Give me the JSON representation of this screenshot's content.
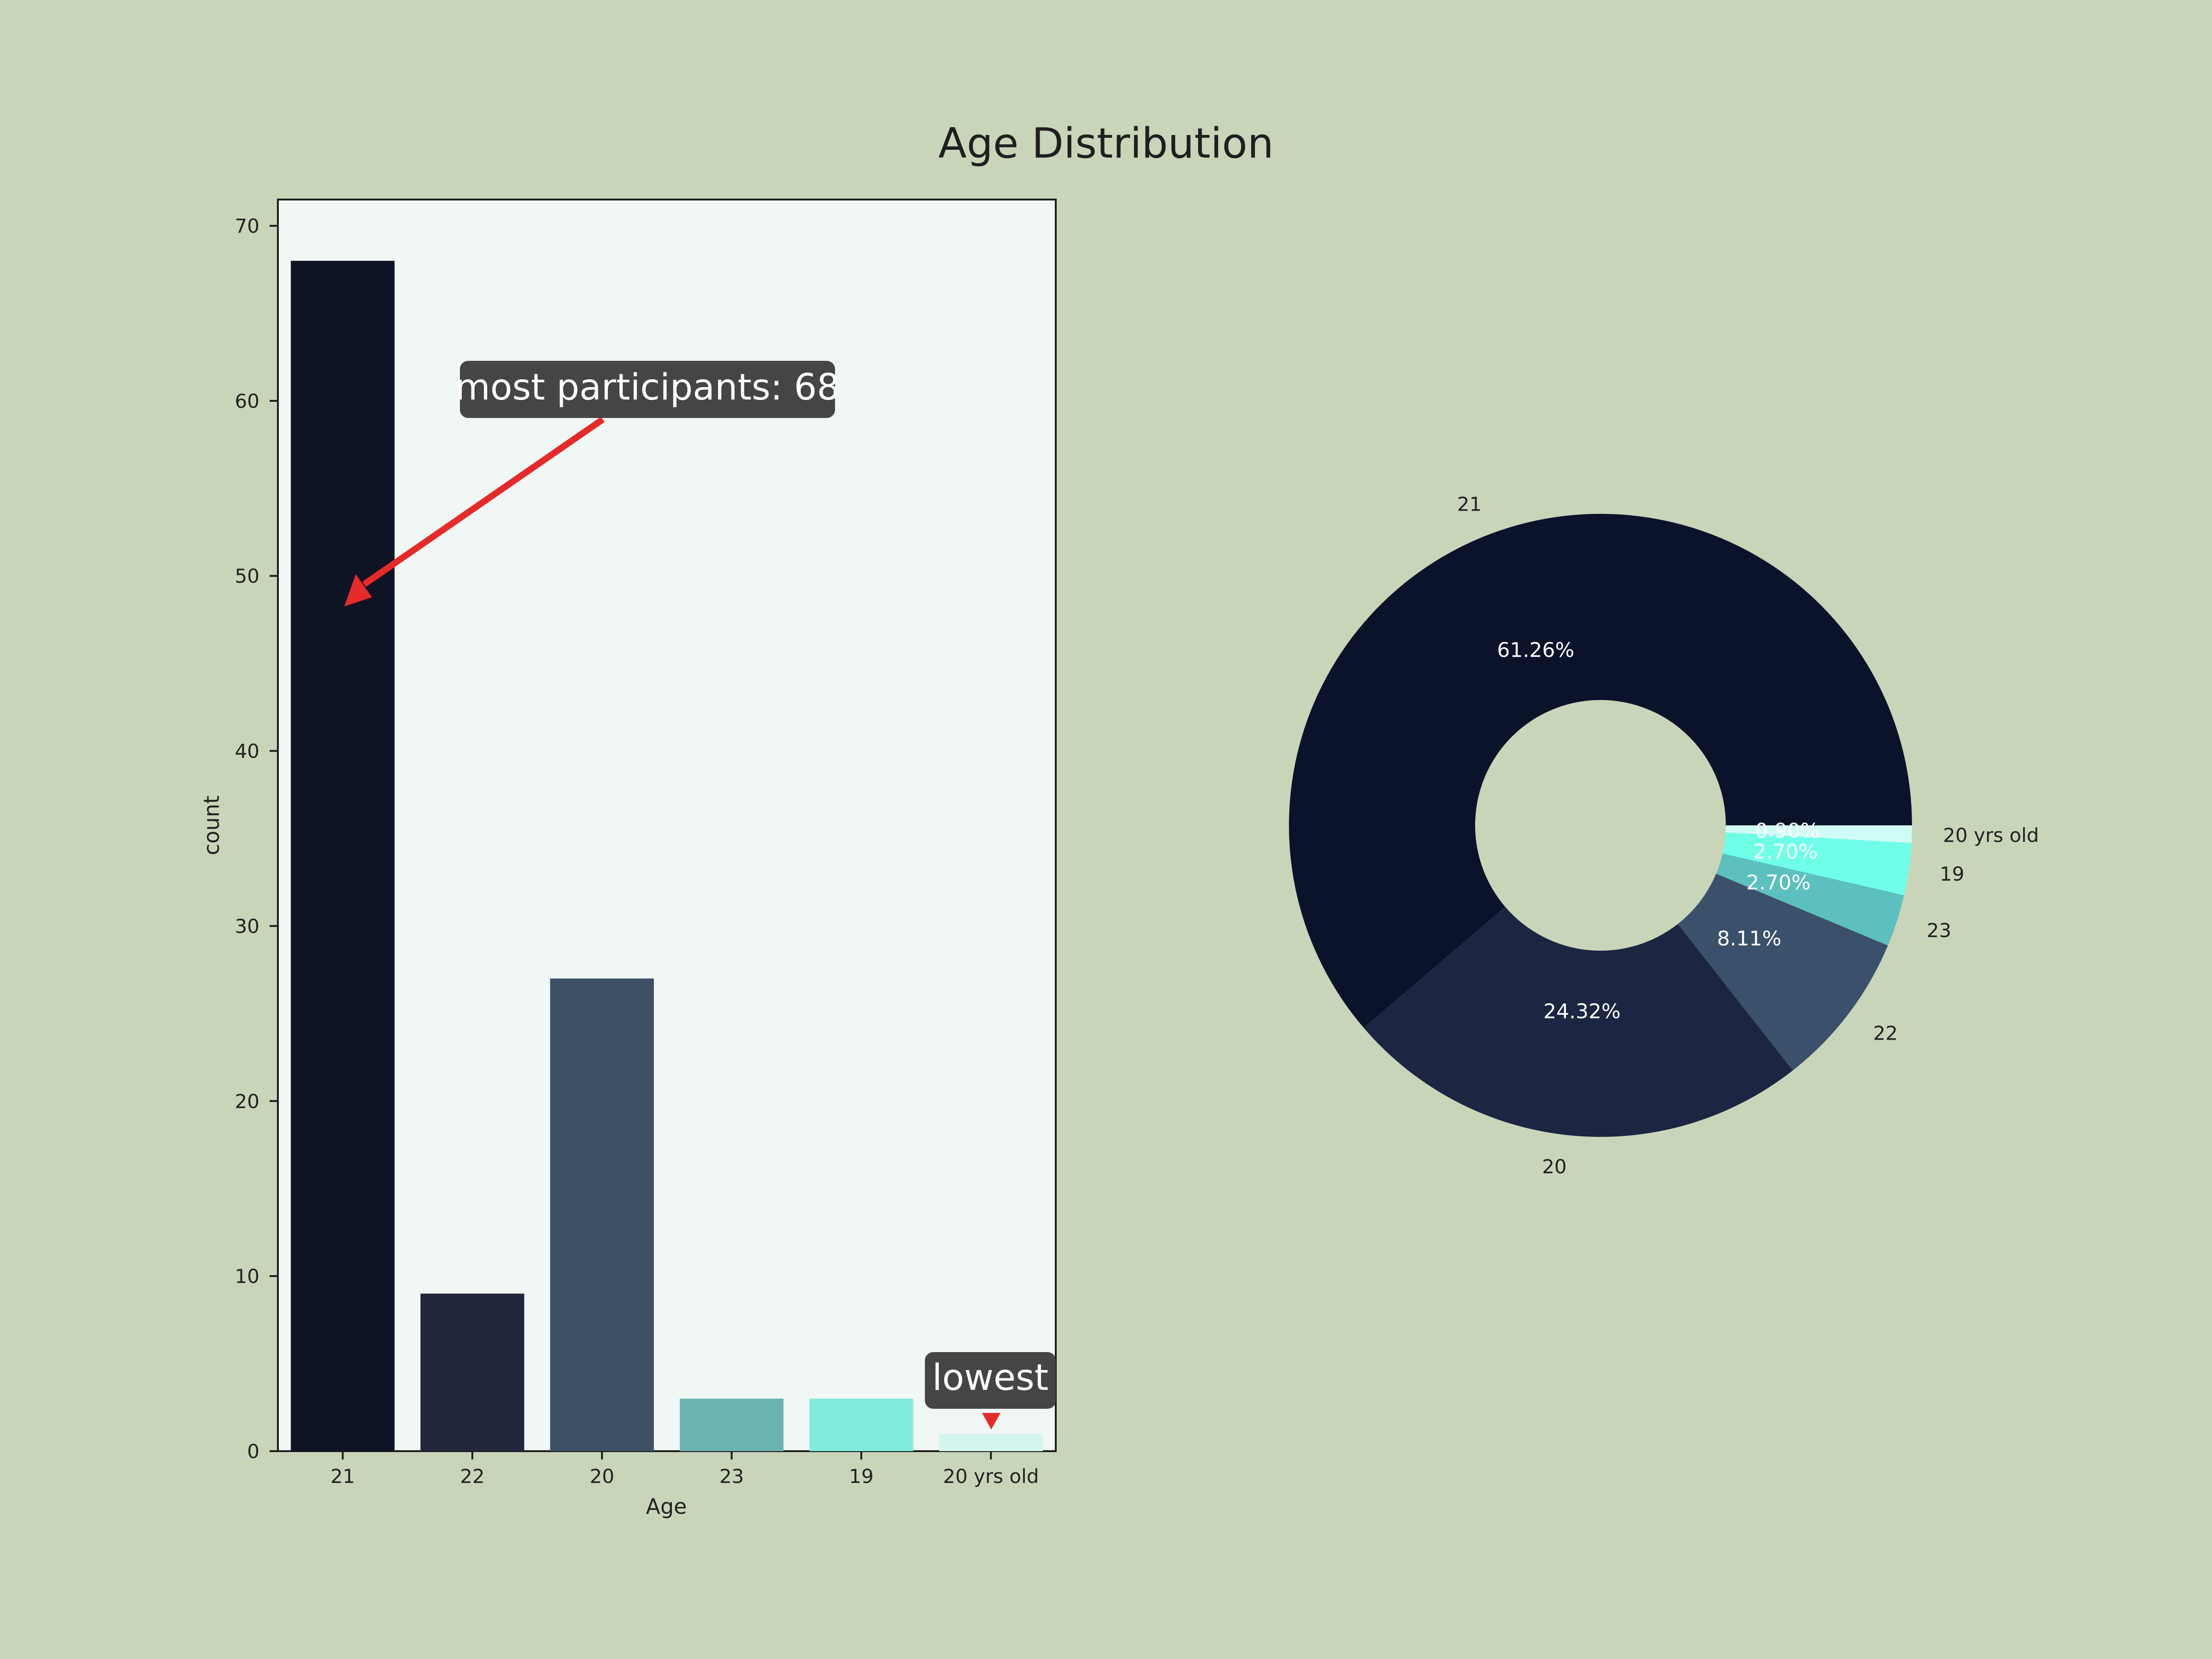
{
  "background": "#c9d5b9",
  "plot_background": "#f1f7f4",
  "title": "Age Distribution",
  "chart_data": [
    {
      "type": "bar",
      "categories": [
        "21",
        "22",
        "20",
        "23",
        "19",
        "20 yrs old"
      ],
      "values": [
        68,
        9,
        27,
        3,
        3,
        1
      ],
      "colors": [
        "#0f1424",
        "#21263b",
        "#3e5066",
        "#6ab3b2",
        "#80ebde",
        "#d5f6f0"
      ],
      "xlabel": "Age",
      "ylabel": "count",
      "ylim": [
        0,
        71.5
      ],
      "yticks": [
        0,
        10,
        20,
        30,
        40,
        50,
        60,
        70
      ],
      "grid": false,
      "annotations": [
        {
          "text": "most participants: 68",
          "target_category": "21",
          "target_y": 48,
          "arrow_color": "#e62a2a"
        },
        {
          "text": "lowest",
          "target_category": "20 yrs old",
          "target_y": 1,
          "arrow_color": "#e62a2a"
        }
      ]
    },
    {
      "type": "pie",
      "style": "donut",
      "labels": [
        "21",
        "20",
        "22",
        "23",
        "19",
        "20 yrs old"
      ],
      "values": [
        61.26,
        24.32,
        8.11,
        2.7,
        2.7,
        0.9
      ],
      "value_labels": [
        "61.26%",
        "24.32%",
        "8.11%",
        "2.70%",
        "2.70%",
        "0.90%"
      ],
      "colors": [
        "#0b132b",
        "#1c2541",
        "#3a506b",
        "#5bc0be",
        "#6fffe9",
        "#d0fcf6"
      ],
      "start_angle_deg": 0,
      "direction": "counterclockwise",
      "legend": false
    }
  ]
}
